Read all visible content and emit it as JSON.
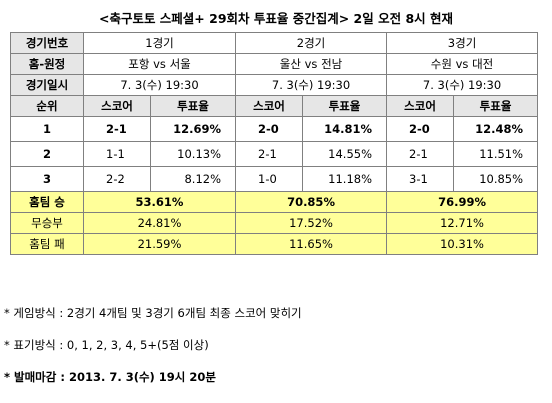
{
  "title": "<축구토토 스페셜+ 29회차 투표율 중간집계> 2일 오전 8시 현재",
  "labels": {
    "game_no": "경기번호",
    "home_away": "홈-원정",
    "game_time": "경기일시",
    "rank": "순위",
    "score": "스코어",
    "vote_rate": "투표율",
    "home_win": "홈팀 승",
    "draw": "무승부",
    "home_loss": "홈팀 패"
  },
  "games": [
    {
      "no": "1경기",
      "home": "포항",
      "vs": "vs",
      "away": "서울",
      "datetime": "7. 3(수) 19:30",
      "ranks": [
        {
          "score": "2-1",
          "rate": "12.69%"
        },
        {
          "score": "1-1",
          "rate": "10.13%"
        },
        {
          "score": "2-2",
          "rate": "8.12%"
        }
      ],
      "home_win": "53.61%",
      "draw": "24.81%",
      "home_loss": "21.59%"
    },
    {
      "no": "2경기",
      "home": "울산",
      "vs": "vs",
      "away": "전남",
      "datetime": "7. 3(수) 19:30",
      "ranks": [
        {
          "score": "2-0",
          "rate": "14.81%"
        },
        {
          "score": "2-1",
          "rate": "14.55%"
        },
        {
          "score": "1-0",
          "rate": "11.18%"
        }
      ],
      "home_win": "70.85%",
      "draw": "17.52%",
      "home_loss": "11.65%"
    },
    {
      "no": "3경기",
      "home": "수원",
      "vs": "vs",
      "away": "대전",
      "datetime": "7. 3(수) 19:30",
      "ranks": [
        {
          "score": "2-0",
          "rate": "12.48%"
        },
        {
          "score": "2-1",
          "rate": "11.51%"
        },
        {
          "score": "3-1",
          "rate": "10.85%"
        }
      ],
      "home_win": "76.99%",
      "draw": "12.71%",
      "home_loss": "10.31%"
    }
  ],
  "rank_numbers": [
    "1",
    "2",
    "3"
  ],
  "notes": [
    "* 게임방식 : 2경기 4개팀 및 3경기 6개팀 최종 스코어 맞히기",
    "* 표기방식 : 0, 1, 2, 3, 4, 5+(5점 이상)",
    "* 발매마감 : 2013. 7. 3(수) 19시 20분"
  ]
}
